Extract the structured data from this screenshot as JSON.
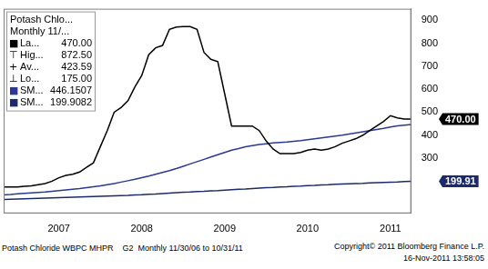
{
  "chart_data": {
    "type": "line",
    "categories": [
      null,
      null,
      null,
      null,
      null,
      null,
      null,
      null,
      "2007",
      null,
      null,
      null,
      null,
      null,
      null,
      null,
      null,
      null,
      null,
      null,
      "2008",
      null,
      null,
      null,
      null,
      null,
      null,
      null,
      null,
      null,
      null,
      null,
      "2009",
      null,
      null,
      null,
      null,
      null,
      null,
      null,
      null,
      null,
      null,
      null,
      "2010",
      null,
      null,
      null,
      null,
      null,
      null,
      null,
      null,
      null,
      null,
      null,
      "2011",
      null,
      null,
      null
    ],
    "series": [
      {
        "color": "#000000",
        "line_style": "solid",
        "values": [
          175,
          175,
          175,
          178,
          180,
          185,
          190,
          200,
          215,
          225,
          230,
          240,
          260,
          280,
          350,
          420,
          500,
          520,
          550,
          610,
          660,
          750,
          780,
          790,
          860,
          870,
          872.5,
          872.5,
          860,
          760,
          730,
          720,
          580,
          440,
          440,
          440,
          440,
          420,
          375,
          340,
          320,
          320,
          320,
          325,
          335,
          340,
          335,
          340,
          350,
          365,
          375,
          385,
          400,
          420,
          440,
          460,
          485,
          475,
          470,
          470
        ]
      },
      {
        "color": "#2b3990",
        "line_style": "solid",
        "values": [
          140,
          142,
          145,
          147,
          149,
          151,
          153,
          156,
          159,
          162,
          165,
          168,
          172,
          176,
          180,
          185,
          190,
          196,
          202,
          208,
          215,
          222,
          230,
          238,
          246,
          255,
          265,
          275,
          285,
          295,
          305,
          315,
          325,
          335,
          342,
          350,
          355,
          360,
          363,
          366,
          368,
          370,
          373,
          376,
          380,
          384,
          388,
          392,
          396,
          400,
          405,
          410,
          415,
          420,
          425,
          430,
          436,
          441,
          444,
          446.15
        ]
      },
      {
        "color": "#1c2a6b",
        "line_style": "solid",
        "values": [
          120,
          121,
          122,
          123,
          124,
          125,
          126,
          127,
          128,
          129,
          130,
          131,
          132,
          133,
          134,
          135,
          136,
          137,
          138,
          140,
          141,
          143,
          144,
          146,
          148,
          150,
          152,
          153,
          155,
          156,
          158,
          159,
          161,
          163,
          165,
          166,
          168,
          170,
          172,
          173,
          175,
          176,
          178,
          179,
          181,
          182,
          184,
          185,
          187,
          188,
          189,
          190,
          191,
          193,
          194,
          195,
          196,
          197,
          199,
          199.91
        ]
      }
    ],
    "ylim": [
      60,
      950
    ],
    "yticks": [
      300,
      400,
      500,
      600,
      700,
      800,
      900
    ],
    "grid": false,
    "legend": "top-left",
    "annotations": [
      {
        "text": "470.00",
        "value": 470,
        "color": "#000000"
      },
      {
        "text": "199.91",
        "value": 199.91,
        "color": "#1c2a6b"
      }
    ],
    "legend_box": {
      "lines": [
        "Potash Chlo...",
        "Monthly 11/..."
      ],
      "rows": [
        {
          "symbol": "■",
          "label": "La...",
          "value": "470.00",
          "color": "#000000"
        },
        {
          "symbol": "⊤",
          "label": "Hig...",
          "value": "872.50",
          "color": "#000000"
        },
        {
          "symbol": "+",
          "label": "Av...",
          "value": "423.59",
          "color": "#000000"
        },
        {
          "symbol": "⊥",
          "label": "Lo...",
          "value": "175.00",
          "color": "#000000"
        },
        {
          "symbol": "■",
          "label": "SM...",
          "value": "446.1507",
          "color": "#2b3990"
        },
        {
          "symbol": "■",
          "label": "SM...",
          "value": "199.9082",
          "color": "#1c2a6b"
        }
      ]
    },
    "footer": {
      "left": "Potash Chloride WBPC MHPR    G2  Monthly 11/30/06 to 10/31/11",
      "right": [
        "Copyright© 2011 Bloomberg Finance L.P.",
        "16-Nov-2011 13:58:05"
      ]
    }
  }
}
